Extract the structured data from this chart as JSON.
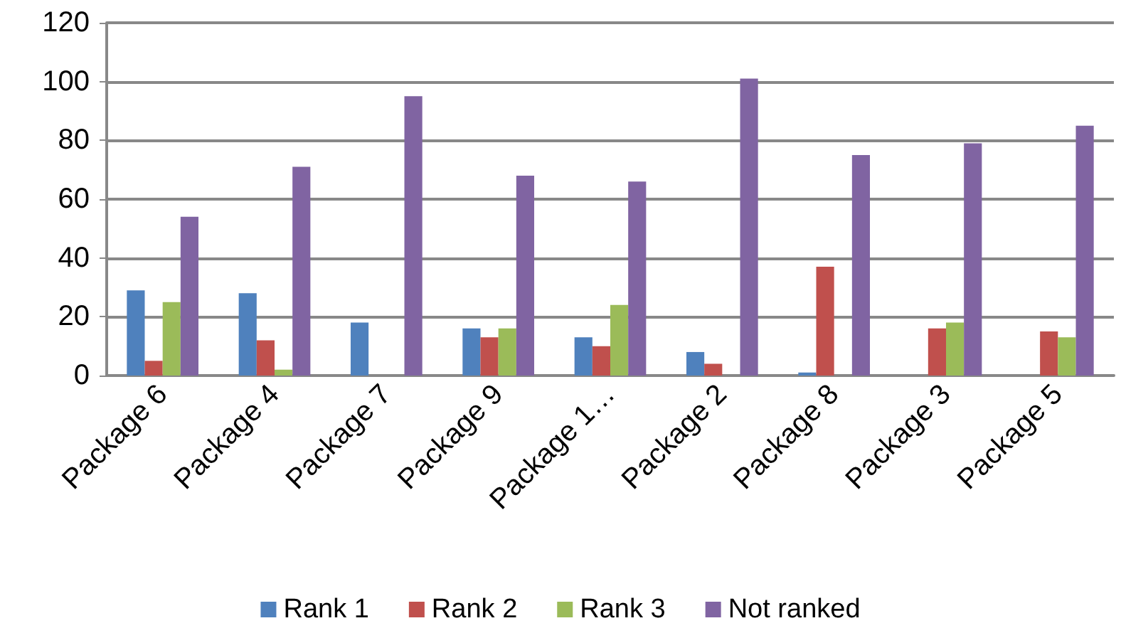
{
  "chart_data": {
    "type": "bar",
    "categories": [
      "Package 6",
      "Package 4",
      "Package 7",
      "Package 9",
      "Package 1…",
      "Package 2",
      "Package 8",
      "Package 3",
      "Package 5"
    ],
    "series": [
      {
        "name": "Rank 1",
        "color": "#4f81bd",
        "values": [
          29,
          28,
          18,
          16,
          13,
          8,
          1,
          0,
          0
        ]
      },
      {
        "name": "Rank 2",
        "color": "#c0504d",
        "values": [
          5,
          12,
          0,
          13,
          10,
          4,
          37,
          16,
          15
        ]
      },
      {
        "name": "Rank 3",
        "color": "#9bbb59",
        "values": [
          25,
          2,
          0,
          16,
          24,
          0,
          0,
          18,
          13
        ]
      },
      {
        "name": "Not ranked",
        "color": "#8064a2",
        "values": [
          54,
          71,
          95,
          68,
          66,
          101,
          75,
          79,
          85
        ]
      }
    ],
    "ylim": [
      0,
      120
    ],
    "yticks": [
      0,
      20,
      40,
      60,
      80,
      100,
      120
    ],
    "grid": "y",
    "legend": "bottom"
  }
}
